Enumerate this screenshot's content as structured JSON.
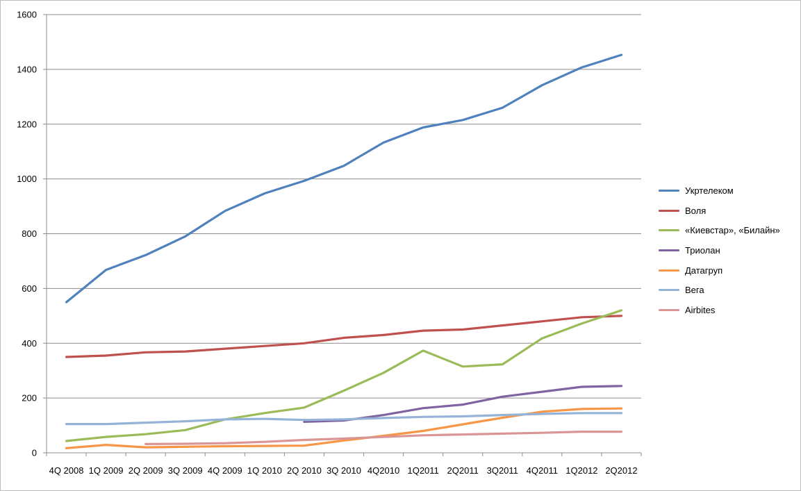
{
  "chart_data": {
    "type": "line",
    "title": "",
    "xlabel": "",
    "ylabel": "",
    "ylim": [
      0,
      1600
    ],
    "yticks": [
      0,
      200,
      400,
      600,
      800,
      1000,
      1200,
      1400,
      1600
    ],
    "grid": true,
    "legend_position": "right",
    "categories": [
      "4Q 2008",
      "1Q 2009",
      "2Q 2009",
      "3Q 2009",
      "4Q 2009",
      "1Q 2010",
      "2Q 2010",
      "3Q 2010",
      "4Q2010",
      "1Q2011",
      "2Q2011",
      "3Q2011",
      "4Q2011",
      "1Q2012",
      "2Q2012"
    ],
    "series": [
      {
        "name": "Укртелеком",
        "color": "#4f81bd",
        "values": [
          550,
          668,
          722,
          790,
          883,
          947,
          993,
          1048,
          1133,
          1188,
          1215,
          1260,
          1342,
          1407,
          1453
        ]
      },
      {
        "name": "Воля",
        "color": "#c0504d",
        "values": [
          350,
          355,
          367,
          370,
          380,
          390,
          400,
          420,
          430,
          446,
          450,
          465,
          480,
          495,
          500
        ]
      },
      {
        "name": "«Киевстар», «Билайн»",
        "color": "#9bbb59",
        "values": [
          43,
          58,
          68,
          83,
          122,
          145,
          165,
          227,
          292,
          373,
          315,
          323,
          418,
          472,
          520
        ]
      },
      {
        "name": "Триолан",
        "color": "#8064a2",
        "values": [
          null,
          null,
          null,
          null,
          null,
          null,
          113,
          118,
          138,
          163,
          176,
          205,
          223,
          241,
          244
        ]
      },
      {
        "name": "Датагруп",
        "color": "#f79646",
        "values": [
          17,
          29,
          20,
          22,
          24,
          25,
          26,
          45,
          62,
          80,
          104,
          128,
          150,
          160,
          162
        ]
      },
      {
        "name": "Вега",
        "color": "#95b3d7",
        "values": [
          105,
          105,
          110,
          115,
          122,
          124,
          120,
          122,
          127,
          131,
          133,
          138,
          142,
          145,
          145
        ]
      },
      {
        "name": "Airbites",
        "color": "#d99694",
        "values": [
          null,
          null,
          32,
          33,
          35,
          40,
          47,
          52,
          58,
          64,
          67,
          70,
          73,
          77,
          77
        ]
      }
    ]
  }
}
